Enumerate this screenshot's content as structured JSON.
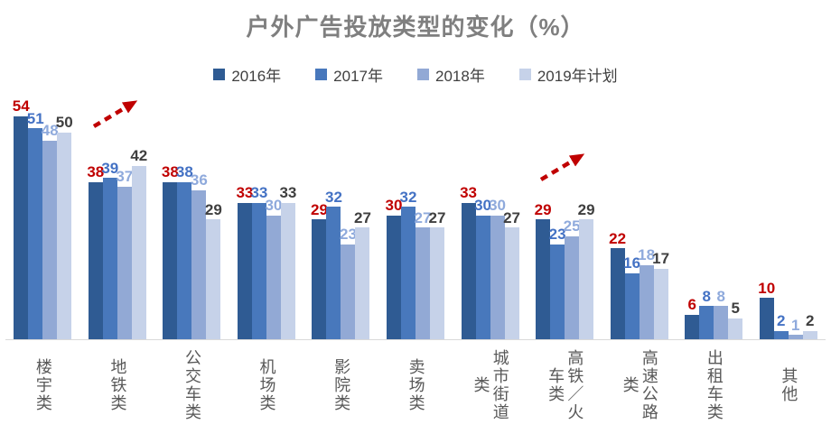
{
  "chart_data": {
    "type": "bar",
    "title": "户外广告投放类型的变化（%）",
    "xlabel": "",
    "ylabel": "",
    "ylim": [
      0,
      60
    ],
    "grid": false,
    "legend_position": "top",
    "value_labels_shown": true,
    "categories": [
      "楼宇类",
      "地铁类",
      "公交车类",
      "机场类",
      "影院类",
      "卖场类",
      "城市街道类",
      "高铁／火车类",
      "高速公路类",
      "出租车类",
      "其他"
    ],
    "series": [
      {
        "name": "2016年",
        "color": "#2f5b93",
        "label_color": "#c00000",
        "values": [
          54,
          38,
          38,
          33,
          29,
          30,
          33,
          29,
          22,
          6,
          10
        ]
      },
      {
        "name": "2017年",
        "color": "#4878bc",
        "label_color": "#4472c4",
        "values": [
          51,
          39,
          38,
          33,
          32,
          32,
          30,
          23,
          16,
          8,
          2
        ]
      },
      {
        "name": "2018年",
        "color": "#92a9d5",
        "label_color": "#8faadc",
        "values": [
          48,
          37,
          36,
          30,
          23,
          27,
          30,
          25,
          18,
          8,
          1
        ]
      },
      {
        "name": "2019年计划",
        "color": "#c6d2e9",
        "label_color": "#3f3f3f",
        "values": [
          50,
          42,
          29,
          33,
          27,
          27,
          27,
          29,
          17,
          5,
          2
        ]
      }
    ],
    "annotations": [
      {
        "type": "trend-up-arrow",
        "category": "地铁类",
        "color": "#c00000"
      },
      {
        "type": "trend-up-arrow",
        "category": "高铁／火车类",
        "color": "#c00000"
      }
    ]
  },
  "style": {
    "title_color": "#7f7f7f",
    "legend_text_color": "#404040",
    "category_label_color": "#595959",
    "axis_line_color": "#d9d9d9"
  }
}
